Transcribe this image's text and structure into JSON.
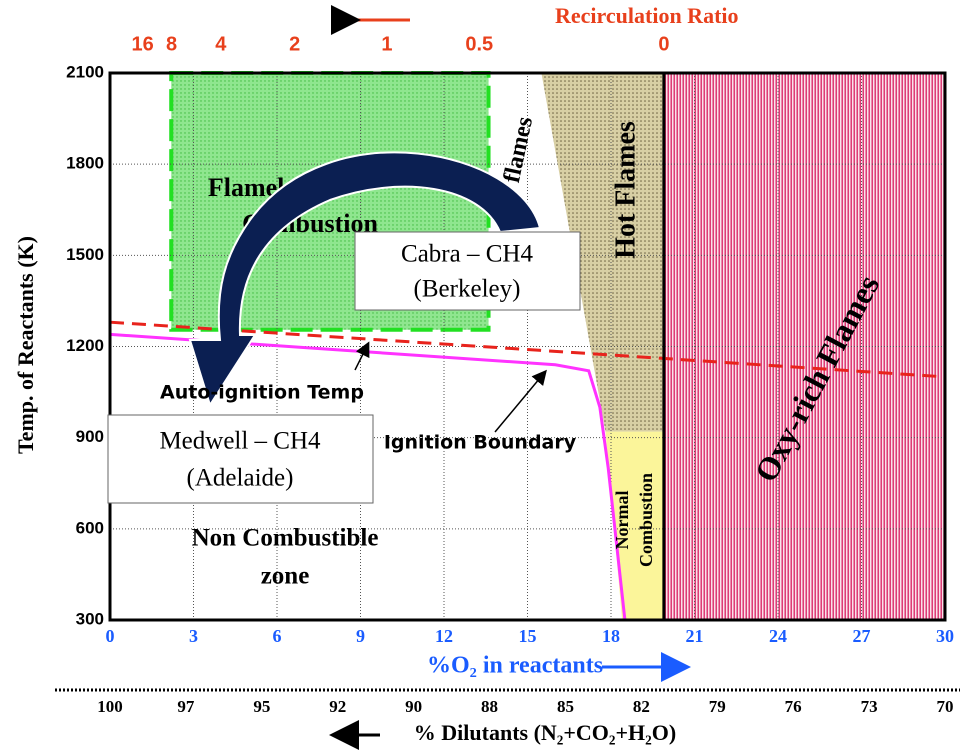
{
  "chart_data": {
    "type": "line",
    "x2label": "Recirculation Ratio",
    "xlabel": "%O₂ in reactants",
    "ylabel": "Temp. of Reactants (K)",
    "x3label": "% Dilutants (N₂+CO₂+H₂O)",
    "xlim": [
      0,
      30
    ],
    "ylim": [
      300,
      2100
    ],
    "xticks": [
      0,
      3,
      6,
      9,
      12,
      15,
      18,
      21,
      24,
      27,
      30
    ],
    "yticks": [
      300,
      600,
      900,
      1200,
      1500,
      1800,
      2100
    ],
    "x2ticks": [
      16,
      8,
      4,
      2,
      1,
      0.5,
      0
    ],
    "x3ticks": [
      100,
      97,
      95,
      92,
      90,
      88,
      85,
      82,
      79,
      76,
      73,
      70
    ],
    "grid": true,
    "regions": [
      {
        "label": [
          "Flameless",
          "Combustion"
        ],
        "color": "#7fe07f",
        "x": [
          2.2,
          13.6,
          13.6,
          2.2
        ],
        "y": [
          2100,
          2100,
          1255,
          1255
        ]
      },
      {
        "label": [
          "Hot Flames"
        ],
        "color": "#cfc79c",
        "x": [
          15.5,
          19.9,
          19.9,
          17.8
        ],
        "y": [
          2100,
          2100,
          920,
          920
        ]
      },
      {
        "label": [
          "Normal",
          "Combustion"
        ],
        "color": "#fbf59a",
        "x": [
          17.8,
          19.9,
          19.9,
          18.4
        ],
        "y": [
          920,
          920,
          300,
          300
        ]
      },
      {
        "label": [
          "Oxy-rich Flames"
        ],
        "color": "#d6155a",
        "x": [
          19.9,
          30,
          30,
          19.9
        ],
        "y": [
          2100,
          2100,
          300,
          300
        ]
      }
    ],
    "series": [
      {
        "name": "Auto-ignition Temp",
        "color": "#e8231c",
        "dash": true,
        "x": [
          0,
          30
        ],
        "values": [
          1280,
          1100
        ]
      },
      {
        "name": "Ignition Boundary",
        "color": "#ff33ff",
        "dash": false,
        "x": [
          0,
          8,
          16,
          17.2,
          17.6,
          17.9,
          18.2,
          18.5
        ],
        "values": [
          1240,
          1190,
          1140,
          1120,
          1000,
          800,
          550,
          300
        ]
      }
    ],
    "notes": [
      "flames"
    ],
    "zone": [
      "Non Combustible",
      "zone"
    ],
    "annotations": [
      [
        "Cabra – CH4",
        "(Berkeley)"
      ],
      [
        "Medwell – CH4",
        "(Adelaide)"
      ]
    ]
  }
}
